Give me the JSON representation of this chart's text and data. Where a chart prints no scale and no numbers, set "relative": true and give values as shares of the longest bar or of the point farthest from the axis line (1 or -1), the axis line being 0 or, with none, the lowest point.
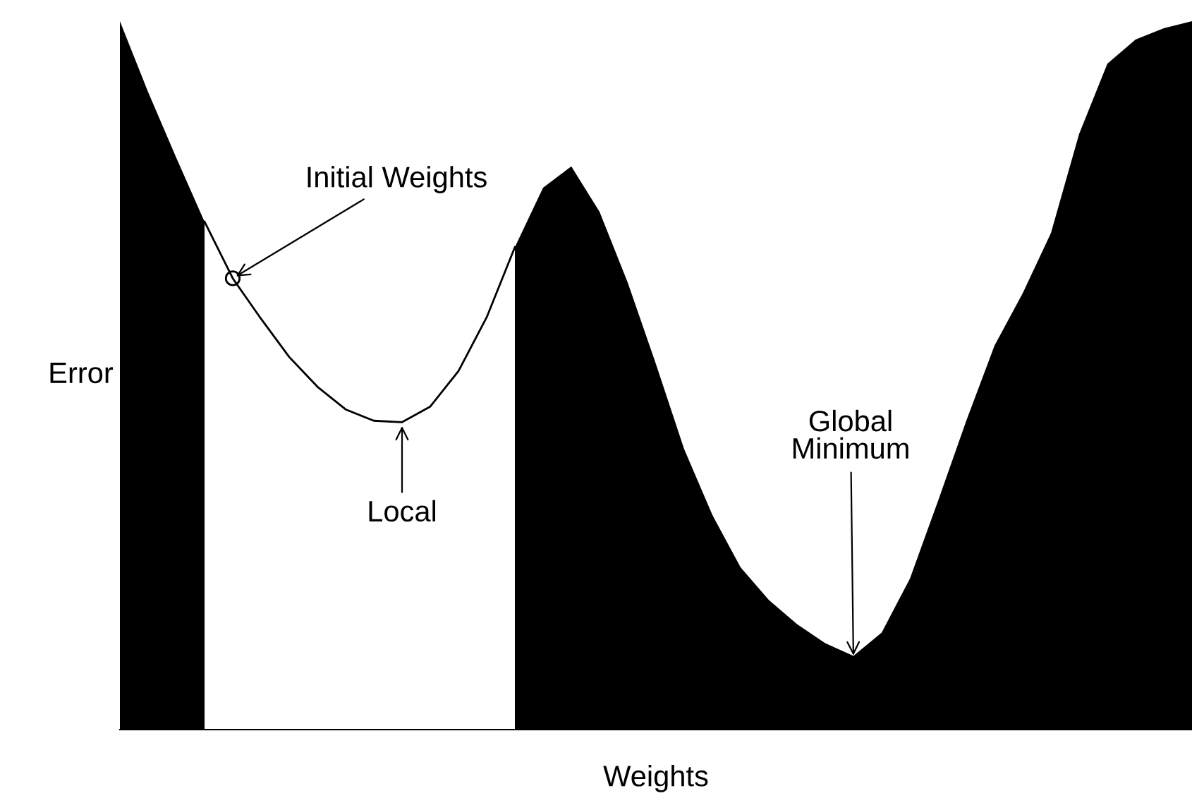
{
  "chart_data": {
    "type": "area",
    "relative": true,
    "xlabel": "Weights",
    "ylabel": "Error",
    "categories": [
      null,
      null,
      null,
      null,
      null,
      null,
      null,
      null,
      null,
      null,
      null,
      null,
      null,
      null,
      null,
      null,
      null,
      null,
      null,
      null,
      null,
      null,
      null,
      null,
      null,
      null,
      null,
      null,
      null,
      null,
      null,
      null,
      null,
      null,
      null,
      null,
      null,
      null,
      null
    ],
    "series": [
      {
        "color": "#000000",
        "values": [
          1.0,
          0.9,
          0.807,
          0.717,
          null,
          null,
          null,
          null,
          null,
          null,
          null,
          null,
          null,
          null,
          0.681,
          0.765,
          0.795,
          0.731,
          0.631,
          0.516,
          0.396,
          0.303,
          0.229,
          0.183,
          0.149,
          0.122,
          0.104,
          0.137,
          0.213,
          0.323,
          0.436,
          0.542,
          0.616,
          0.701,
          0.841,
          0.94,
          0.974,
          0.99,
          1.0
        ]
      },
      {
        "type": "line",
        "color": "#000000",
        "values": [
          null,
          null,
          null,
          0.717,
          0.637,
          0.58,
          0.526,
          0.484,
          0.452,
          0.436,
          0.434,
          0.456,
          0.506,
          0.582,
          0.681,
          null,
          null,
          null,
          null,
          null,
          null,
          null,
          null,
          null,
          null,
          null,
          null,
          null,
          null,
          null,
          null,
          null,
          null,
          null,
          null,
          null,
          null,
          null,
          null
        ]
      }
    ],
    "annotations": [
      "Initial Weights",
      "Local",
      "Global\nMinimum"
    ],
    "grid": false,
    "legend": false,
    "tick_labels": false
  }
}
